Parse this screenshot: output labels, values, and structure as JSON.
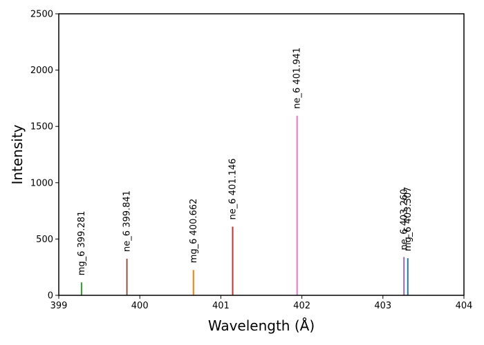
{
  "chart_data": {
    "type": "bar",
    "title": "",
    "xlabel": "Wavelength (Å)",
    "ylabel": "Intensity",
    "xlim": [
      399,
      404
    ],
    "ylim": [
      0,
      2500
    ],
    "xticks": [
      "399",
      "400",
      "401",
      "402",
      "403",
      "404"
    ],
    "yticks": [
      "0",
      "500",
      "1000",
      "1500",
      "2000",
      "2500"
    ],
    "grid": false,
    "legend": "none",
    "lines": [
      {
        "label": "mg_6 399.281",
        "x": 399.281,
        "y": 115,
        "color": "#2ca02c"
      },
      {
        "label": "ne_6 399.841",
        "x": 399.841,
        "y": 325,
        "color": "#8c564b"
      },
      {
        "label": "mg_6 400.662",
        "x": 400.662,
        "y": 225,
        "color": "#ff7f0e"
      },
      {
        "label": "ne_6 401.146",
        "x": 401.146,
        "y": 610,
        "color": "#d62728"
      },
      {
        "label": "ne_6 401.941",
        "x": 401.941,
        "y": 1595,
        "color": "#e377c2"
      },
      {
        "label": "ne_6 403.260",
        "x": 403.26,
        "y": 340,
        "color": "#9467bd"
      },
      {
        "label": "mg_6 403.307",
        "x": 403.307,
        "y": 330,
        "color": "#1f77b4"
      }
    ]
  }
}
